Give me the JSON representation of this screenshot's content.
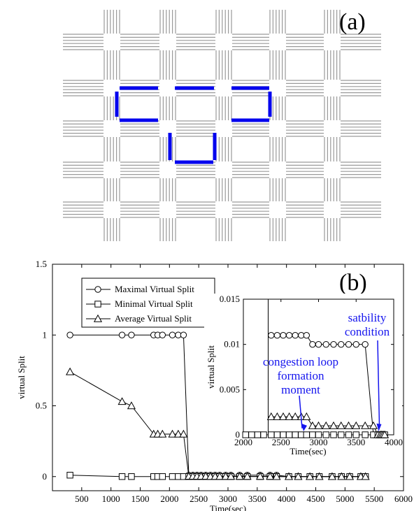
{
  "panel_a": {
    "label": "(a)",
    "road_color": "#9a9a9a",
    "highlight_color": "#0000ee"
  },
  "chart_data": [
    {
      "type": "line",
      "panel_label": "(b)",
      "xlabel": "Time(sec)",
      "ylabel": "virtual Split",
      "xlim": [
        0,
        6000
      ],
      "ylim": [
        -0.1,
        1.5
      ],
      "x_ticks": [
        "500",
        "1000",
        "1500",
        "2000",
        "2500",
        "3000",
        "3500",
        "4000",
        "4500",
        "5000",
        "5500",
        "6000"
      ],
      "y_ticks": [
        "0",
        "0.5",
        "1",
        "1.5"
      ],
      "legend_position": "top-left",
      "series": [
        {
          "name": "Maximal Virtual Split",
          "marker": "circle",
          "x": [
            300,
            1190,
            1350,
            1730,
            1800,
            1880,
            2050,
            2150,
            2240,
            2330,
            2400,
            2470,
            2540,
            2620,
            2700,
            2780,
            2860,
            2960,
            3050,
            3200,
            3330,
            3550,
            3720,
            3830,
            4040,
            4200,
            4400,
            4560,
            4780,
            4940,
            5080,
            5270,
            5350
          ],
          "y": [
            1,
            1,
            1,
            1,
            1,
            1,
            1,
            1,
            1,
            0.01,
            0.01,
            0.01,
            0.01,
            0.01,
            0.01,
            0.01,
            0.01,
            0.01,
            0.01,
            0.01,
            0.01,
            0.01,
            0.01,
            0.01,
            0.0,
            0.0,
            0.0,
            0.0,
            0.0,
            0.0,
            0.0,
            0.0,
            0.0
          ]
        },
        {
          "name": "Minimal Virtual Split",
          "marker": "square",
          "x": [
            300,
            1190,
            1350,
            1730,
            1800,
            1880,
            2050,
            2150,
            2240,
            2330,
            2400,
            2470,
            2540,
            2620,
            2700,
            2780,
            2860,
            2960,
            3050,
            3200,
            3330,
            3550,
            3720,
            3830,
            4040,
            4200,
            4400,
            4560,
            4780,
            4940,
            5080,
            5270,
            5350
          ],
          "y": [
            0.01,
            0,
            0,
            0,
            0,
            0,
            0,
            0,
            0,
            0,
            0,
            0,
            0,
            0,
            0,
            0,
            0,
            0,
            0,
            0,
            0,
            0,
            0,
            0,
            0,
            0,
            0,
            0,
            0,
            0,
            0,
            0,
            0
          ]
        },
        {
          "name": "Average Virtual Split",
          "marker": "triangle",
          "x": [
            300,
            1190,
            1350,
            1730,
            1800,
            1880,
            2050,
            2150,
            2240,
            2330,
            2400,
            2470,
            2540,
            2620,
            2700,
            2780,
            2860,
            2960,
            3050,
            3200,
            3330,
            3550,
            3720,
            3830,
            4040,
            4200,
            4400,
            4560,
            4780,
            4940,
            5080,
            5270,
            5350
          ],
          "y": [
            0.74,
            0.53,
            0.5,
            0.3,
            0.3,
            0.3,
            0.3,
            0.3,
            0.3,
            0.002,
            0.002,
            0.002,
            0.002,
            0.002,
            0.001,
            0.001,
            0.001,
            0.001,
            0.001,
            0.001,
            0.001,
            0.001,
            0.001,
            0,
            0,
            0,
            0,
            0,
            0,
            0,
            0,
            0,
            0
          ]
        }
      ]
    },
    {
      "type": "line",
      "panel": "inset",
      "xlabel": "Time(sec)",
      "ylabel": "virtual Split",
      "xlim": [
        2000,
        4000
      ],
      "ylim": [
        0,
        0.015
      ],
      "x_ticks": [
        "2000",
        "2500",
        "3000",
        "3500",
        "4000"
      ],
      "y_ticks": [
        "0",
        "0.005",
        "0.01",
        "0.015"
      ],
      "series": [
        {
          "name": "Maximal Virtual Split",
          "marker": "circle",
          "x": [
            2370,
            2450,
            2530,
            2610,
            2690,
            2770,
            2840,
            2920,
            3000,
            3100,
            3200,
            3300,
            3400,
            3500,
            3620,
            3730,
            3790,
            3820,
            3840,
            3860,
            3880
          ],
          "y": [
            0.011,
            0.011,
            0.011,
            0.011,
            0.011,
            0.011,
            0.011,
            0.01,
            0.01,
            0.01,
            0.01,
            0.01,
            0.01,
            0.01,
            0.01,
            0,
            0,
            0,
            0,
            0,
            0
          ]
        },
        {
          "name": "Minimal Virtual Split",
          "marker": "square",
          "x": [
            2030,
            2110,
            2190,
            2270,
            2370,
            2450,
            2530,
            2610,
            2690,
            2770,
            2840,
            2920,
            3000,
            3100,
            3200,
            3300,
            3400,
            3500,
            3620,
            3730,
            3790,
            3820,
            3840,
            3860,
            3880
          ],
          "y": [
            0,
            0,
            0,
            0,
            0,
            0,
            0,
            0,
            0,
            0,
            0,
            0,
            0,
            0,
            0,
            0,
            0,
            0,
            0,
            0,
            0,
            0,
            0,
            0,
            0
          ]
        },
        {
          "name": "Average Virtual Split",
          "marker": "triangle",
          "x": [
            2370,
            2450,
            2530,
            2610,
            2690,
            2770,
            2840,
            2920,
            3000,
            3100,
            3200,
            3300,
            3400,
            3500,
            3620,
            3730,
            3790,
            3820,
            3840,
            3860,
            3880
          ],
          "y": [
            0.002,
            0.002,
            0.002,
            0.002,
            0.002,
            0.002,
            0.002,
            0.001,
            0.001,
            0.001,
            0.001,
            0.001,
            0.001,
            0.001,
            0.001,
            0.001,
            0,
            0,
            0,
            0,
            0
          ]
        }
      ],
      "spike_x": 2330,
      "annotations": [
        {
          "lines": [
            "congestion loop",
            "formation",
            "moment"
          ],
          "arrow_to": [
            2800,
            0.0004
          ]
        },
        {
          "lines": [
            "satbility",
            "condition"
          ],
          "arrow_to": [
            3800,
            0.0004
          ]
        }
      ]
    }
  ]
}
